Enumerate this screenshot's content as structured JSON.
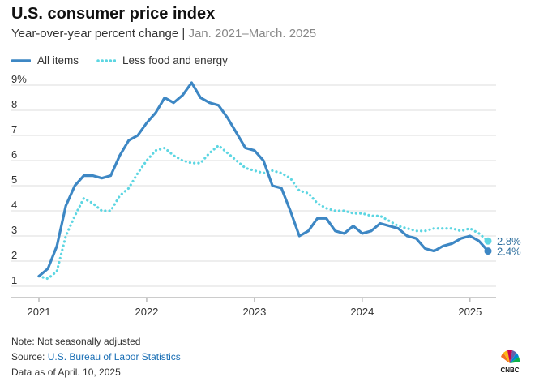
{
  "header": {
    "title": "U.S. consumer price index",
    "subtitle_main": "Year-over-year percent change | ",
    "subtitle_range": "Jan. 2021–March. 2025"
  },
  "legend": [
    {
      "label": "All items"
    },
    {
      "label": "Less food and energy"
    }
  ],
  "colors": {
    "all_items": "#3d87c4",
    "core": "#5dd6e2",
    "grid": "#dcdcdc",
    "label": "#2e6f9e"
  },
  "footer": {
    "note": "Note: Not seasonally adjusted",
    "source_prefix": "Source: ",
    "source_link": "U.S. Bureau of Labor Statistics",
    "data_as_of": "Data as of April. 10, 2025"
  },
  "logo": {
    "text": "CNBC"
  },
  "chart_data": {
    "type": "line",
    "x_start": "2021-01",
    "x_end": "2025-03",
    "x_ticks": [
      "2021",
      "2022",
      "2023",
      "2024",
      "2025"
    ],
    "y_ticks": [
      "9%",
      "8",
      "7",
      "6",
      "5",
      "4",
      "3",
      "2",
      "1"
    ],
    "ylim": [
      1,
      9
    ],
    "grid": true,
    "series": [
      {
        "name": "All items",
        "style": "solid",
        "end_label": "2.4%",
        "values": [
          1.4,
          1.7,
          2.6,
          4.2,
          5.0,
          5.4,
          5.4,
          5.3,
          5.4,
          6.2,
          6.8,
          7.0,
          7.5,
          7.9,
          8.5,
          8.3,
          8.6,
          9.1,
          8.5,
          8.3,
          8.2,
          7.7,
          7.1,
          6.5,
          6.4,
          6.0,
          5.0,
          4.9,
          4.0,
          3.0,
          3.2,
          3.7,
          3.7,
          3.2,
          3.1,
          3.4,
          3.1,
          3.2,
          3.5,
          3.4,
          3.3,
          3.0,
          2.9,
          2.5,
          2.4,
          2.6,
          2.7,
          2.9,
          3.0,
          2.8,
          2.4
        ]
      },
      {
        "name": "Less food and energy",
        "style": "dotted",
        "end_label": "2.8%",
        "values": [
          1.4,
          1.3,
          1.6,
          3.0,
          3.8,
          4.5,
          4.3,
          4.0,
          4.0,
          4.6,
          4.9,
          5.5,
          6.0,
          6.4,
          6.5,
          6.2,
          6.0,
          5.9,
          5.9,
          6.3,
          6.6,
          6.3,
          6.0,
          5.7,
          5.6,
          5.5,
          5.6,
          5.5,
          5.3,
          4.8,
          4.7,
          4.3,
          4.1,
          4.0,
          4.0,
          3.9,
          3.9,
          3.8,
          3.8,
          3.6,
          3.4,
          3.3,
          3.2,
          3.2,
          3.3,
          3.3,
          3.3,
          3.2,
          3.3,
          3.1,
          2.8
        ]
      }
    ]
  }
}
